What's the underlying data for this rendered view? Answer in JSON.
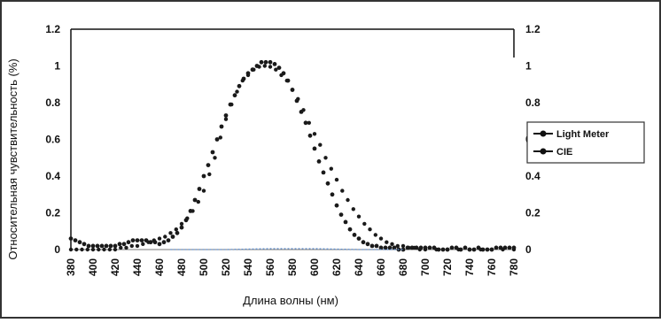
{
  "chart_data": {
    "type": "scatter",
    "title": "",
    "xlabel": "Длина волны (нм)",
    "ylabel": "Относительная чувствительность (%)",
    "xlim": [
      380,
      780
    ],
    "ylim": [
      0,
      1.2
    ],
    "x_ticks": [
      "380",
      "400",
      "420",
      "440",
      "460",
      "480",
      "500",
      "520",
      "540",
      "560",
      "580",
      "600",
      "620",
      "640",
      "660",
      "680",
      "700",
      "720",
      "740",
      "760",
      "780"
    ],
    "y_ticks_left": [
      "0",
      "0.2",
      "0.4",
      "0.6",
      "0.8",
      "1",
      "1.2"
    ],
    "y_ticks_right": [
      "0",
      "0.2",
      "0.4",
      "0.6",
      "0.8",
      "1",
      "1.2"
    ],
    "grid": false,
    "legend_position": "right",
    "series": [
      {
        "name": "Light Meter",
        "color": "#1a1a1a",
        "marker": "circle",
        "points": [
          [
            380,
            0.06
          ],
          [
            384,
            0.05
          ],
          [
            388,
            0.04
          ],
          [
            392,
            0.03
          ],
          [
            396,
            0.02
          ],
          [
            400,
            0.02
          ],
          [
            404,
            0.02
          ],
          [
            408,
            0.02
          ],
          [
            412,
            0.02
          ],
          [
            416,
            0.02
          ],
          [
            420,
            0.02
          ],
          [
            424,
            0.03
          ],
          [
            428,
            0.03
          ],
          [
            432,
            0.04
          ],
          [
            436,
            0.05
          ],
          [
            440,
            0.05
          ],
          [
            444,
            0.05
          ],
          [
            448,
            0.05
          ],
          [
            452,
            0.04
          ],
          [
            456,
            0.04
          ],
          [
            460,
            0.03
          ],
          [
            464,
            0.04
          ],
          [
            468,
            0.05
          ],
          [
            472,
            0.07
          ],
          [
            476,
            0.09
          ],
          [
            480,
            0.12
          ],
          [
            484,
            0.16
          ],
          [
            488,
            0.21
          ],
          [
            492,
            0.27
          ],
          [
            496,
            0.33
          ],
          [
            500,
            0.4
          ],
          [
            504,
            0.46
          ],
          [
            508,
            0.53
          ],
          [
            512,
            0.6
          ],
          [
            516,
            0.67
          ],
          [
            520,
            0.73
          ],
          [
            524,
            0.79
          ],
          [
            528,
            0.84
          ],
          [
            532,
            0.89
          ],
          [
            536,
            0.93
          ],
          [
            540,
            0.96
          ],
          [
            544,
            0.98
          ],
          [
            548,
            1.0
          ],
          [
            552,
            1.02
          ],
          [
            556,
            1.02
          ],
          [
            560,
            1.02
          ],
          [
            564,
            1.01
          ],
          [
            568,
            0.99
          ],
          [
            572,
            0.96
          ],
          [
            576,
            0.92
          ],
          [
            580,
            0.87
          ],
          [
            584,
            0.81
          ],
          [
            588,
            0.75
          ],
          [
            592,
            0.69
          ],
          [
            596,
            0.62
          ],
          [
            600,
            0.55
          ],
          [
            604,
            0.48
          ],
          [
            608,
            0.42
          ],
          [
            612,
            0.36
          ],
          [
            616,
            0.3
          ],
          [
            620,
            0.24
          ],
          [
            624,
            0.19
          ],
          [
            628,
            0.15
          ],
          [
            632,
            0.11
          ],
          [
            636,
            0.08
          ],
          [
            640,
            0.06
          ],
          [
            644,
            0.04
          ],
          [
            648,
            0.03
          ],
          [
            652,
            0.02
          ],
          [
            656,
            0.02
          ],
          [
            660,
            0.01
          ],
          [
            664,
            0.01
          ],
          [
            668,
            0.01
          ],
          [
            672,
            0.01
          ],
          [
            676,
            0.0
          ],
          [
            680,
            0.0
          ],
          [
            684,
            0.01
          ],
          [
            688,
            0.01
          ],
          [
            692,
            0.01
          ],
          [
            696,
            0.01
          ],
          [
            700,
            0.01
          ],
          [
            704,
            0.01
          ],
          [
            708,
            0.01
          ],
          [
            712,
            0.0
          ],
          [
            716,
            0.0
          ],
          [
            720,
            0.0
          ],
          [
            724,
            0.01
          ],
          [
            728,
            0.01
          ],
          [
            732,
            0.0
          ],
          [
            736,
            0.01
          ],
          [
            740,
            0.0
          ],
          [
            744,
            0.0
          ],
          [
            748,
            0.01
          ],
          [
            752,
            0.0
          ],
          [
            756,
            0.0
          ],
          [
            760,
            0.0
          ],
          [
            764,
            0.01
          ],
          [
            768,
            0.01
          ],
          [
            772,
            0.01
          ],
          [
            776,
            0.01
          ],
          [
            780,
            0.01
          ]
        ]
      },
      {
        "name": "CIE",
        "color": "#1a1a1a",
        "marker": "circle",
        "points": [
          [
            380,
            0.0
          ],
          [
            385,
            0.0
          ],
          [
            390,
            0.0
          ],
          [
            395,
            0.0
          ],
          [
            400,
            0.0
          ],
          [
            405,
            0.0
          ],
          [
            410,
            0.0
          ],
          [
            415,
            0.0
          ],
          [
            420,
            0.0
          ],
          [
            425,
            0.01
          ],
          [
            430,
            0.01
          ],
          [
            435,
            0.02
          ],
          [
            440,
            0.02
          ],
          [
            445,
            0.03
          ],
          [
            450,
            0.04
          ],
          [
            455,
            0.05
          ],
          [
            460,
            0.06
          ],
          [
            465,
            0.07
          ],
          [
            470,
            0.09
          ],
          [
            475,
            0.11
          ],
          [
            480,
            0.14
          ],
          [
            485,
            0.17
          ],
          [
            490,
            0.21
          ],
          [
            495,
            0.26
          ],
          [
            500,
            0.32
          ],
          [
            505,
            0.41
          ],
          [
            510,
            0.5
          ],
          [
            515,
            0.61
          ],
          [
            520,
            0.71
          ],
          [
            525,
            0.79
          ],
          [
            530,
            0.86
          ],
          [
            535,
            0.92
          ],
          [
            540,
            0.95
          ],
          [
            545,
            0.98
          ],
          [
            550,
            0.995
          ],
          [
            555,
            1.0
          ],
          [
            560,
            0.995
          ],
          [
            565,
            0.98
          ],
          [
            570,
            0.95
          ],
          [
            575,
            0.92
          ],
          [
            580,
            0.87
          ],
          [
            585,
            0.82
          ],
          [
            590,
            0.76
          ],
          [
            595,
            0.69
          ],
          [
            600,
            0.63
          ],
          [
            605,
            0.57
          ],
          [
            610,
            0.5
          ],
          [
            615,
            0.44
          ],
          [
            620,
            0.38
          ],
          [
            625,
            0.32
          ],
          [
            630,
            0.27
          ],
          [
            635,
            0.22
          ],
          [
            640,
            0.18
          ],
          [
            645,
            0.14
          ],
          [
            650,
            0.11
          ],
          [
            655,
            0.08
          ],
          [
            660,
            0.06
          ],
          [
            665,
            0.04
          ],
          [
            670,
            0.03
          ],
          [
            675,
            0.02
          ],
          [
            680,
            0.02
          ],
          [
            685,
            0.01
          ],
          [
            690,
            0.01
          ],
          [
            695,
            0.0
          ],
          [
            700,
            0.0
          ],
          [
            710,
            0.0
          ],
          [
            720,
            0.0
          ],
          [
            730,
            0.0
          ],
          [
            740,
            0.0
          ],
          [
            750,
            0.0
          ],
          [
            760,
            0.0
          ],
          [
            770,
            0.0
          ],
          [
            780,
            0.0
          ]
        ]
      },
      {
        "name": "",
        "color": "#5f8fd0",
        "marker": "line",
        "points": [
          [
            470,
            0.0
          ],
          [
            520,
            0.0
          ],
          [
            560,
            0.005
          ],
          [
            600,
            0.005
          ],
          [
            640,
            0.0
          ],
          [
            680,
            0.0
          ]
        ]
      }
    ]
  }
}
